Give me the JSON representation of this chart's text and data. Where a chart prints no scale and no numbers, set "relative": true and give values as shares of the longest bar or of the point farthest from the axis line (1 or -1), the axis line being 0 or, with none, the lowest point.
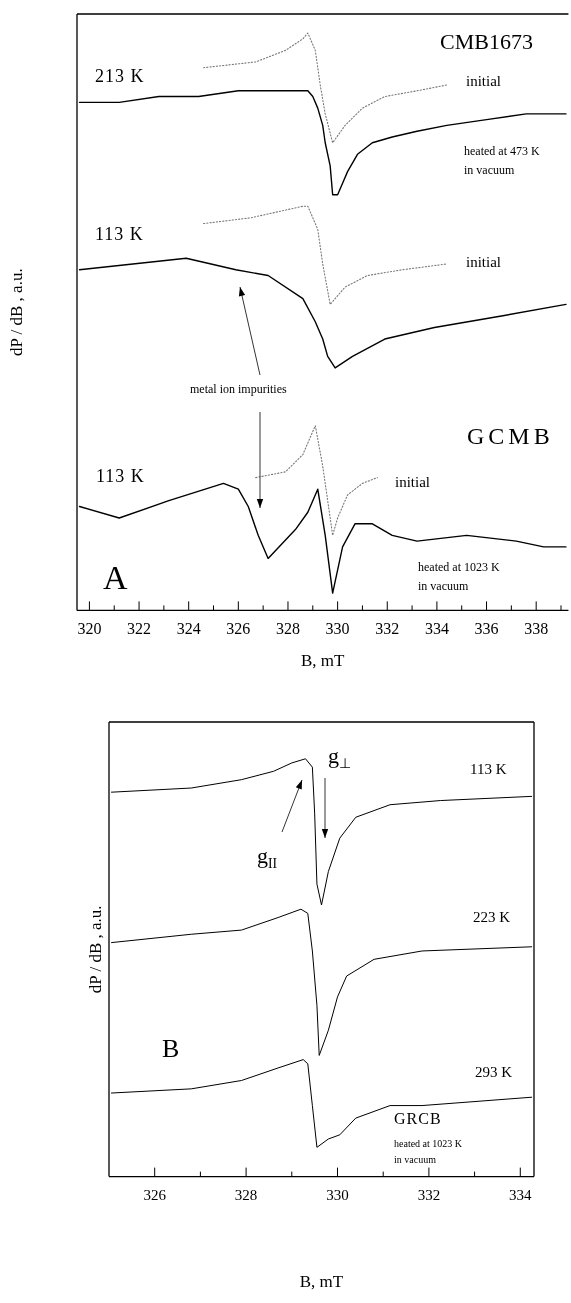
{
  "chart_data": [
    {
      "type": "line",
      "xlabel": "B, mT",
      "ylabel": "dP / dB , a.u.",
      "relative": true,
      "xlim": [
        319.5,
        339.3
      ],
      "xticks": [
        320,
        {
          "value": 321,
          "label": null
        },
        322,
        {
          "value": 323,
          "label": null
        },
        324,
        {
          "value": 325,
          "label": null
        },
        326,
        {
          "value": 327,
          "label": null
        },
        328,
        {
          "value": 329,
          "label": null
        },
        330,
        {
          "value": 331,
          "label": null
        },
        332,
        {
          "value": 333,
          "label": null
        },
        334,
        {
          "value": 335,
          "label": null
        },
        336,
        {
          "value": 337,
          "label": null
        },
        338,
        {
          "value": 339,
          "label": null
        }
      ],
      "tick_labels": "x",
      "grid": false,
      "marker": "none",
      "series": [
        {
          "color": "#000000",
          "line_style": "solid",
          "x": [
            319.6,
            321.2,
            322.8,
            324.4,
            326.0,
            327.6,
            328.4,
            328.8,
            329.0,
            329.2,
            329.4,
            329.5,
            329.7,
            329.8,
            330.0,
            330.2,
            330.4,
            330.8,
            331.4,
            332.2,
            333.2,
            334.4,
            336.0,
            337.6,
            339.2
          ],
          "values": [
            0.88,
            0.88,
            0.89,
            0.89,
            0.9,
            0.9,
            0.9,
            0.9,
            0.89,
            0.87,
            0.84,
            0.81,
            0.77,
            0.72,
            0.72,
            0.74,
            0.76,
            0.79,
            0.81,
            0.82,
            0.83,
            0.84,
            0.85,
            0.86,
            0.86
          ]
        },
        {
          "color": "#777777",
          "line_style": "dotted",
          "x": [
            324.6,
            326.7,
            327.9,
            328.6,
            328.8,
            329.1,
            329.3,
            329.5,
            329.8,
            330.3,
            331.0,
            331.9,
            333.2,
            334.4
          ],
          "values": [
            0.94,
            0.95,
            0.97,
            0.99,
            1.0,
            0.97,
            0.91,
            0.86,
            0.81,
            0.84,
            0.87,
            0.89,
            0.9,
            0.91
          ]
        },
        {
          "color": "#777777",
          "line_style": "dotted",
          "x": [
            324.6,
            326.5,
            328.6,
            328.8,
            329.2,
            329.4,
            329.7,
            330.3,
            331.2,
            332.6,
            334.4
          ],
          "values": [
            0.67,
            0.68,
            0.7,
            0.7,
            0.66,
            0.6,
            0.53,
            0.56,
            0.58,
            0.59,
            0.6
          ]
        },
        {
          "color": "#000000",
          "line_style": "solid",
          "x": [
            319.6,
            323.9,
            325.9,
            327.2,
            328.6,
            329.1,
            329.4,
            329.6,
            329.9,
            330.6,
            331.9,
            333.9,
            336.6,
            339.2
          ],
          "values": [
            0.59,
            0.61,
            0.59,
            0.58,
            0.54,
            0.5,
            0.47,
            0.44,
            0.42,
            0.44,
            0.47,
            0.49,
            0.51,
            0.53
          ]
        },
        {
          "color": "#777777",
          "line_style": "dotted",
          "x": [
            326.7,
            327.9,
            328.6,
            329.1,
            329.4,
            329.6,
            329.8,
            330.0,
            330.4,
            331.0,
            331.6
          ],
          "values": [
            0.23,
            0.24,
            0.27,
            0.32,
            0.25,
            0.19,
            0.13,
            0.16,
            0.2,
            0.22,
            0.23
          ]
        },
        {
          "color": "#000000",
          "line_style": "solid",
          "x": [
            319.6,
            321.2,
            323.2,
            325.4,
            326.0,
            326.4,
            326.8,
            327.2,
            328.3,
            328.8,
            329.2,
            329.5,
            329.8,
            330.2,
            330.7,
            331.4,
            332.2,
            333.2,
            335.2,
            337.2,
            338.3,
            339.2
          ],
          "values": [
            0.18,
            0.16,
            0.19,
            0.22,
            0.21,
            0.18,
            0.13,
            0.09,
            0.14,
            0.17,
            0.21,
            0.13,
            0.03,
            0.11,
            0.15,
            0.15,
            0.13,
            0.12,
            0.13,
            0.12,
            0.11,
            0.11
          ]
        }
      ],
      "annotations": [
        "CMB1673",
        "213 K",
        "initial",
        "heated at 473 K\nin vacuum",
        "113 K",
        "initial",
        "metal ion impurities",
        "GCMB",
        "113 K",
        "initial",
        "heated at 1023 K\nin vacuum",
        "A"
      ]
    },
    {
      "type": "line",
      "xlabel": "B, mT",
      "ylabel": "dP / dB , a.u.",
      "relative": true,
      "xlim": [
        325.0,
        334.3
      ],
      "xticks": [
        326,
        {
          "value": 327,
          "label": null
        },
        328,
        {
          "value": 329,
          "label": null
        },
        330,
        {
          "value": 331,
          "label": null
        },
        332,
        {
          "value": 333,
          "label": null
        },
        334
      ],
      "tick_labels": "x",
      "grid": false,
      "marker": "none",
      "series": [
        {
          "color": "#000000",
          "line_style": "solid",
          "x": [
            325.05,
            326.8,
            327.9,
            328.6,
            329.0,
            329.3,
            329.45,
            329.5,
            329.55,
            329.65,
            329.8,
            330.05,
            330.4,
            331.15,
            332.25,
            334.25
          ],
          "values": [
            0.92,
            0.93,
            0.95,
            0.97,
            0.99,
            1.0,
            0.98,
            0.87,
            0.7,
            0.65,
            0.73,
            0.81,
            0.86,
            0.89,
            0.9,
            0.91
          ]
        },
        {
          "color": "#000000",
          "line_style": "solid",
          "x": [
            325.05,
            326.8,
            327.9,
            328.7,
            329.2,
            329.35,
            329.45,
            329.55,
            329.6,
            329.8,
            330.0,
            330.2,
            330.8,
            331.85,
            334.25
          ],
          "values": [
            0.56,
            0.58,
            0.59,
            0.62,
            0.64,
            0.63,
            0.54,
            0.41,
            0.29,
            0.35,
            0.43,
            0.48,
            0.52,
            0.54,
            0.55
          ]
        },
        {
          "color": "#000000",
          "line_style": "solid",
          "x": [
            325.05,
            326.8,
            327.9,
            328.7,
            329.25,
            329.35,
            329.45,
            329.55,
            329.8,
            330.05,
            330.4,
            331.15,
            331.85,
            334.25
          ],
          "values": [
            0.2,
            0.21,
            0.23,
            0.26,
            0.28,
            0.27,
            0.17,
            0.07,
            0.09,
            0.1,
            0.14,
            0.17,
            0.17,
            0.19
          ]
        }
      ],
      "annotations": [
        "g$_{⊥}$",
        "g$_{II}$",
        "113 K",
        "223 K",
        "293 K",
        "GRCB",
        "heated at 1023 K\nin vacuum",
        "B"
      ]
    }
  ]
}
